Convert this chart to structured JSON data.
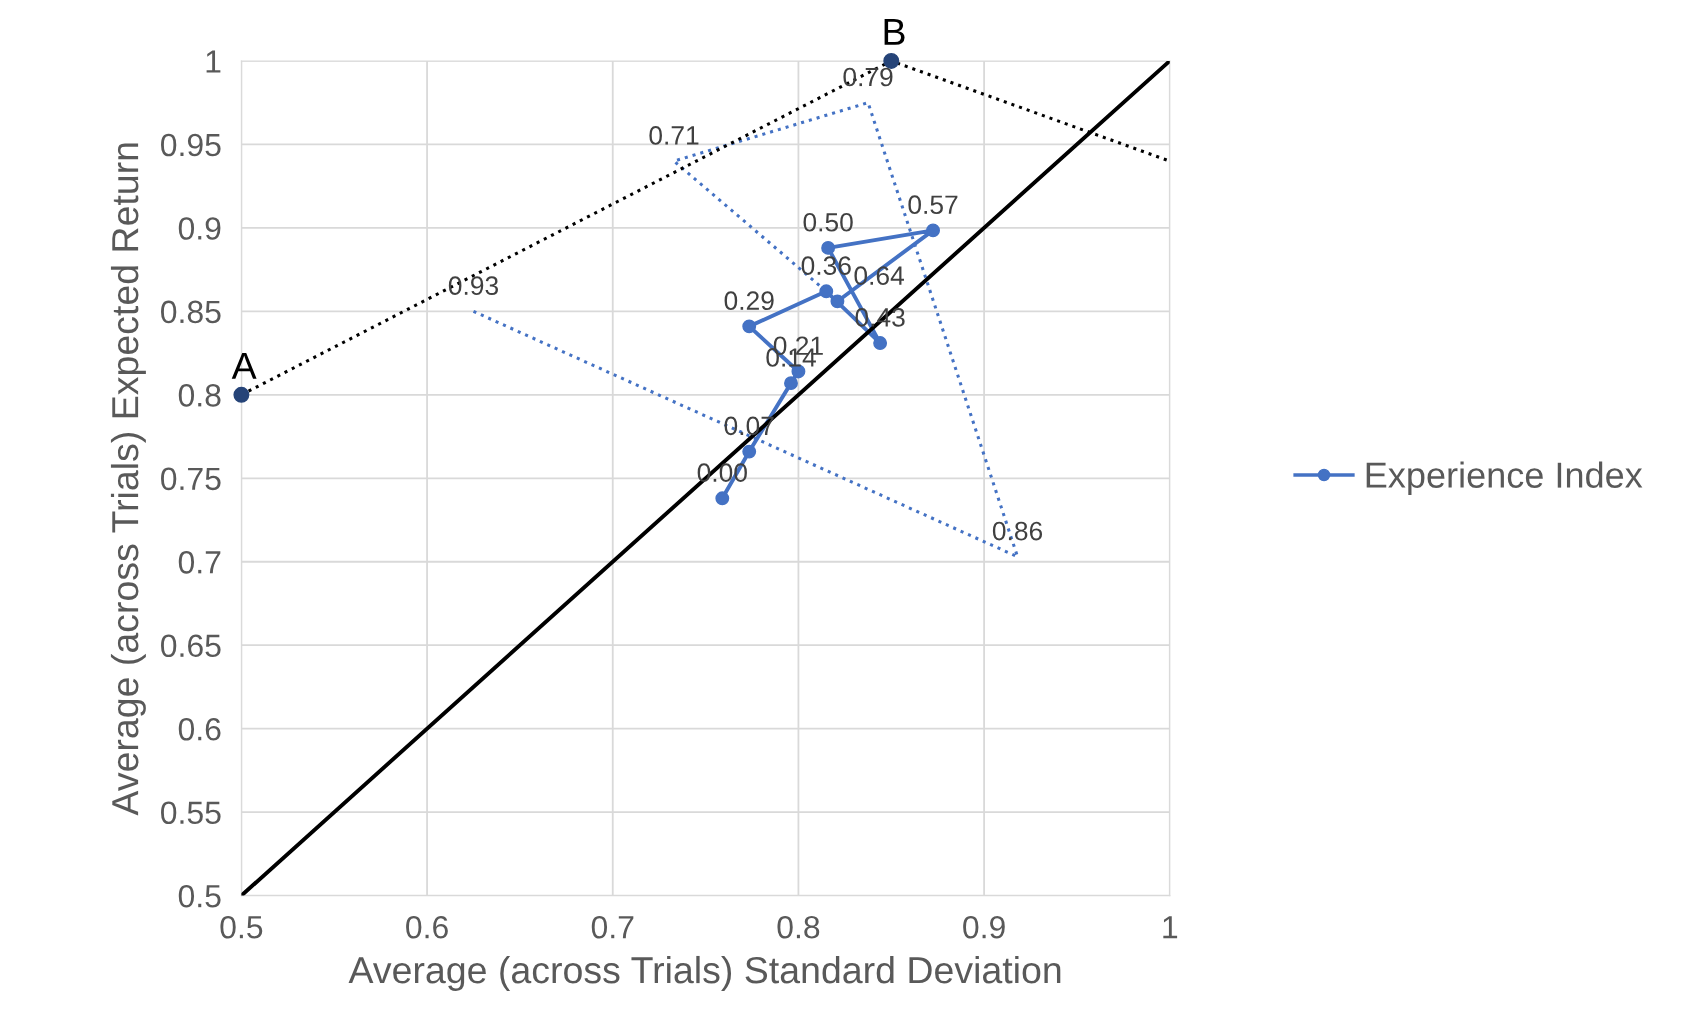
{
  "chart_data": {
    "type": "line",
    "xlabel": "Average (across Trials) Standard Deviation",
    "ylabel": "Average (across Trials) Expected Return",
    "xlim": [
      0.5,
      1
    ],
    "xticks": [
      0.5,
      0.6,
      0.7,
      0.8,
      0.9,
      1
    ],
    "ylim": [
      0.5,
      1
    ],
    "yticks": [
      0.5,
      0.55,
      0.6,
      0.65,
      0.7,
      0.75,
      0.8,
      0.85,
      0.9,
      0.95,
      1
    ],
    "grid": true,
    "legend": "right",
    "series": [
      {
        "name": "Experience Index",
        "color": "#4472c4",
        "marker": "circle",
        "line_style": "solid",
        "x": [
          0.759,
          0.7735,
          0.796,
          0.8,
          0.7735,
          0.815,
          0.844,
          0.816,
          0.8725,
          0.821
        ],
        "values": [
          0.738,
          0.766,
          0.807,
          0.814,
          0.841,
          0.862,
          0.831,
          0.888,
          0.8985,
          0.856
        ]
      },
      {
        "color": "#4472c4",
        "marker": "none",
        "line_style": "dotted",
        "x": [
          0.625,
          0.918,
          0.8375,
          0.733,
          0.815
        ],
        "values": [
          0.85,
          0.703,
          0.975,
          0.94,
          0.862
        ]
      },
      {
        "color": "#000000",
        "marker": "none",
        "line_style": "dotted",
        "x": [
          0.5,
          0.85,
          1
        ],
        "values": [
          0.8,
          1.0,
          0.94
        ]
      },
      {
        "color": "#000000",
        "marker": "none",
        "line_style": "solid",
        "x": [
          0.5,
          1
        ],
        "values": [
          0.5,
          1
        ]
      },
      {
        "type": "scatter",
        "color": "#264478",
        "marker": "circle",
        "x": [
          0.5,
          0.85
        ],
        "values": [
          0.8,
          1.0
        ]
      }
    ],
    "annotations": [
      {
        "text": "A",
        "x": 0.5,
        "y": 0.8
      },
      {
        "text": "B",
        "x": 0.85,
        "y": 1.0
      },
      {
        "text": "0.00",
        "x": 0.759,
        "y": 0.738
      },
      {
        "text": "0.07",
        "x": 0.7735,
        "y": 0.766
      },
      {
        "text": "0.14",
        "x": 0.796,
        "y": 0.807
      },
      {
        "text": "0.21",
        "x": 0.8,
        "y": 0.814
      },
      {
        "text": "0.29",
        "x": 0.7735,
        "y": 0.841
      },
      {
        "text": "0.36",
        "x": 0.815,
        "y": 0.862
      },
      {
        "text": "0.43",
        "x": 0.844,
        "y": 0.831
      },
      {
        "text": "0.50",
        "x": 0.816,
        "y": 0.888
      },
      {
        "text": "0.57",
        "x": 0.8725,
        "y": 0.8985
      },
      {
        "text": "0.64",
        "x": 0.821,
        "y": 0.856
      },
      {
        "text": "0.93",
        "x": 0.625,
        "y": 0.85
      },
      {
        "text": "0.86",
        "x": 0.918,
        "y": 0.703
      },
      {
        "text": "0.79",
        "x": 0.8375,
        "y": 0.975
      },
      {
        "text": "0.71",
        "x": 0.733,
        "y": 0.94
      }
    ]
  }
}
